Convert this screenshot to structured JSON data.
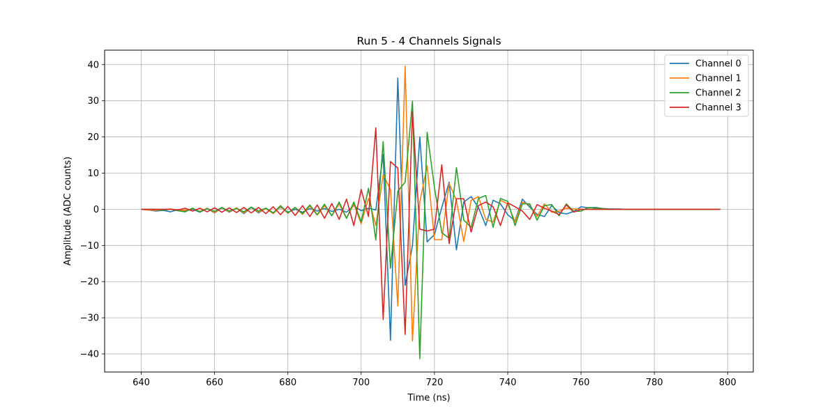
{
  "chart_data": {
    "type": "line",
    "title": "Run 5 - 4 Channels Signals",
    "xlabel": "Time (ns)",
    "ylabel": "Amplitude (ADC counts)",
    "xlim": [
      630,
      807
    ],
    "ylim": [
      -45,
      44
    ],
    "xticks": [
      640,
      660,
      680,
      700,
      720,
      740,
      760,
      780,
      800
    ],
    "yticks": [
      -40,
      -30,
      -20,
      -10,
      0,
      10,
      20,
      30,
      40
    ],
    "xtick_labels": [
      "640",
      "660",
      "680",
      "700",
      "720",
      "740",
      "760",
      "780",
      "800"
    ],
    "ytick_labels": [
      "−40",
      "−30",
      "−20",
      "−10",
      "0",
      "10",
      "20",
      "30",
      "40"
    ],
    "grid": true,
    "legend_position": "top-right",
    "x_start": 640,
    "x_step": 2,
    "series": [
      {
        "name": "Channel 0",
        "color": "#1f77b4",
        "values": [
          0.0,
          -0.2,
          -0.5,
          -0.3,
          -0.7,
          -0.1,
          -0.5,
          0.0,
          -0.8,
          0.2,
          -1.0,
          0.4,
          -0.8,
          0.3,
          -1.2,
          0.5,
          -1.0,
          0.3,
          -1.0,
          0.6,
          -0.8,
          0.0,
          -0.8,
          0.2,
          -0.5,
          0.2,
          -0.6,
          0.0,
          -0.8,
          1.0,
          -0.4,
          0.3,
          -0.2,
          15.2,
          -36.2,
          36.3,
          -21.0,
          -10.0,
          20.0,
          -9.0,
          -7.0,
          0.5,
          7.5,
          -11.2,
          2.0,
          3.5,
          0.5,
          -4.5,
          2.5,
          1.5,
          -1.5,
          -3.2,
          2.8,
          0.6,
          -1.4,
          -2.0,
          1.0,
          -0.9,
          -1.3,
          -0.6,
          0.7,
          0.4,
          0.5,
          0.2,
          0.1,
          0.1,
          0.0,
          0.0,
          0.0,
          0.0,
          0.0,
          0.0,
          0.0,
          0.0,
          0.0,
          0.0,
          0.0,
          0.0,
          0.0,
          0.0
        ]
      },
      {
        "name": "Channel 1",
        "color": "#ff7f0e",
        "values": [
          0.0,
          -0.2,
          -0.3,
          -0.1,
          0.1,
          -0.2,
          -0.3,
          0.2,
          -0.6,
          0.3,
          -0.9,
          0.5,
          -0.7,
          0.4,
          -1.0,
          0.6,
          -0.8,
          0.2,
          -1.2,
          0.8,
          -1.1,
          0.5,
          -1.4,
          0.9,
          -1.6,
          1.0,
          -1.8,
          1.5,
          -2.5,
          1.5,
          -4.0,
          3.0,
          -4.5,
          9.5,
          5.5,
          -26.7,
          39.6,
          -36.4,
          2.0,
          12.0,
          -8.4,
          -8.4,
          7.2,
          2.4,
          -8.9,
          2.5,
          3.5,
          -2.8,
          -3.5,
          2.5,
          1.5,
          -3.5,
          2.0,
          1.2,
          -2.0,
          1.5,
          -0.8,
          -0.5,
          0.3,
          0.1,
          0.0,
          0.0,
          0.0,
          0.0,
          0.0,
          0.0,
          0.0,
          0.0,
          0.0,
          0.0,
          0.0,
          0.0,
          0.0,
          0.0,
          0.0,
          0.0,
          0.0,
          0.0,
          0.0,
          0.0
        ]
      },
      {
        "name": "Channel 2",
        "color": "#2ca02c",
        "values": [
          0.0,
          0.0,
          0.0,
          -0.2,
          0.0,
          -0.4,
          -0.7,
          0.3,
          -0.7,
          0.2,
          -0.6,
          0.5,
          -0.5,
          0.2,
          -0.7,
          0.6,
          -0.5,
          0.3,
          -1.0,
          1.0,
          -1.0,
          0.5,
          -1.2,
          1.2,
          -1.5,
          1.4,
          -1.8,
          2.0,
          -2.5,
          2.0,
          -3.5,
          5.8,
          -8.5,
          18.7,
          -16.3,
          5.0,
          7.5,
          29.9,
          -41.3,
          21.3,
          6.0,
          -6.5,
          -8.0,
          11.5,
          -3.0,
          -5.0,
          3.0,
          3.8,
          -5.0,
          3.0,
          2.2,
          -4.5,
          1.5,
          1.5,
          -3.0,
          1.0,
          1.3,
          -1.8,
          1.5,
          -0.6,
          -0.5,
          0.5,
          0.3,
          0.2,
          0.0,
          0.0,
          0.0,
          0.0,
          0.0,
          0.0,
          0.0,
          0.0,
          0.0,
          0.0,
          0.0,
          0.0,
          0.0,
          0.0,
          0.0,
          0.0
        ]
      },
      {
        "name": "Channel 3",
        "color": "#d62728",
        "values": [
          0.0,
          0.0,
          0.0,
          0.0,
          0.0,
          -0.2,
          0.3,
          -0.5,
          0.3,
          -0.7,
          0.4,
          -0.8,
          0.4,
          -0.9,
          0.5,
          -1.0,
          0.5,
          -1.2,
          0.7,
          -1.5,
          0.8,
          -1.7,
          1.0,
          -2.0,
          1.2,
          -2.5,
          1.6,
          -2.8,
          2.8,
          -4.5,
          5.5,
          -2.0,
          22.5,
          -30.5,
          13.2,
          11.4,
          -34.6,
          27.0,
          -5.5,
          -6.0,
          -5.5,
          12.3,
          -9.5,
          2.9,
          2.9,
          -6.3,
          1.0,
          2.0,
          0.7,
          -4.5,
          1.8,
          0.7,
          -0.5,
          -2.8,
          1.3,
          0.3,
          -0.5,
          -1.5,
          1.2,
          -0.8,
          0.0,
          0.0,
          0.0,
          0.0,
          0.0,
          0.0,
          0.0,
          0.0,
          0.0,
          0.0,
          0.0,
          0.0,
          0.0,
          0.0,
          0.0,
          0.0,
          0.0,
          0.0,
          0.0,
          0.0
        ]
      }
    ]
  }
}
